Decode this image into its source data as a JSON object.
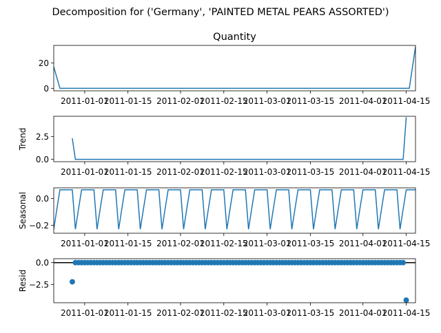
{
  "figure": {
    "title": "Decomposition for ('Germany', 'PAINTED METAL PEARS ASSORTED')",
    "line_color": "#1f77b4",
    "background": "#ffffff"
  },
  "chart_data": [
    {
      "type": "line",
      "name": "observed",
      "title": "Quantity",
      "ylabel": "",
      "x_start": "2010-12-22",
      "x_end": "2011-04-18",
      "ylim": [
        -2,
        34
      ],
      "yticks": [
        0,
        20
      ],
      "ytick_labels": [
        "0",
        "20"
      ],
      "xtick_labels": [
        "2011-01-01",
        "2011-01-15",
        "2011-02-01",
        "2011-02-15",
        "2011-03-01",
        "2011-03-15",
        "2011-04-01",
        "2011-04-15"
      ],
      "points": [
        {
          "date": "2010-12-22",
          "value": 17
        },
        {
          "date": "2010-12-24",
          "value": 0
        },
        {
          "date": "2011-04-16",
          "value": 0
        },
        {
          "date": "2011-04-18",
          "value": 33
        }
      ]
    },
    {
      "type": "line",
      "name": "trend",
      "title": "",
      "ylabel": "Trend",
      "x_start": "2010-12-22",
      "x_end": "2011-04-18",
      "ylim": [
        -0.25,
        4.7
      ],
      "yticks": [
        0.0,
        2.5
      ],
      "ytick_labels": [
        "0.0",
        "2.5"
      ],
      "xtick_labels": [
        "2011-01-01",
        "2011-01-15",
        "2011-02-01",
        "2011-02-15",
        "2011-03-01",
        "2011-03-15",
        "2011-04-01",
        "2011-04-15"
      ],
      "points": [
        {
          "date": "2010-12-28",
          "value": 2.3
        },
        {
          "date": "2010-12-29",
          "value": 0
        },
        {
          "date": "2011-04-14",
          "value": 0
        },
        {
          "date": "2011-04-15",
          "value": 4.6
        }
      ]
    },
    {
      "type": "line",
      "name": "seasonal",
      "title": "",
      "ylabel": "Seasonal",
      "x_start": "2010-12-22",
      "x_end": "2011-04-18",
      "ylim": [
        -0.26,
        0.08
      ],
      "yticks": [
        0.0,
        -0.2
      ],
      "ytick_labels": [
        "0.0",
        "−0.2"
      ],
      "xtick_labels": [
        "2011-01-01",
        "2011-01-15",
        "2011-02-01",
        "2011-02-15",
        "2011-03-01",
        "2011-03-15",
        "2011-04-01",
        "2011-04-15"
      ],
      "period_days": 7,
      "cycle_values": [
        -0.23,
        -0.08,
        0.065,
        0.065,
        0.065,
        0.065,
        0.065
      ]
    },
    {
      "type": "scatter",
      "name": "resid",
      "title": "",
      "ylabel": "Resid",
      "x_start": "2010-12-22",
      "x_end": "2011-04-18",
      "ylim": [
        -4.6,
        0.45
      ],
      "yticks": [
        0.0,
        -2.5
      ],
      "ytick_labels": [
        "0.0",
        "−2.5"
      ],
      "xtick_labels": [
        "2011-01-01",
        "2011-01-15",
        "2011-02-01",
        "2011-02-15",
        "2011-03-01",
        "2011-03-15",
        "2011-04-01",
        "2011-04-15"
      ],
      "baseline": 0,
      "range_start": "2010-12-28",
      "range_end": "2011-04-15",
      "default_value": 0,
      "overrides": [
        {
          "date": "2010-12-28",
          "value": -2.2
        },
        {
          "date": "2011-04-15",
          "value": -4.3
        }
      ]
    }
  ]
}
